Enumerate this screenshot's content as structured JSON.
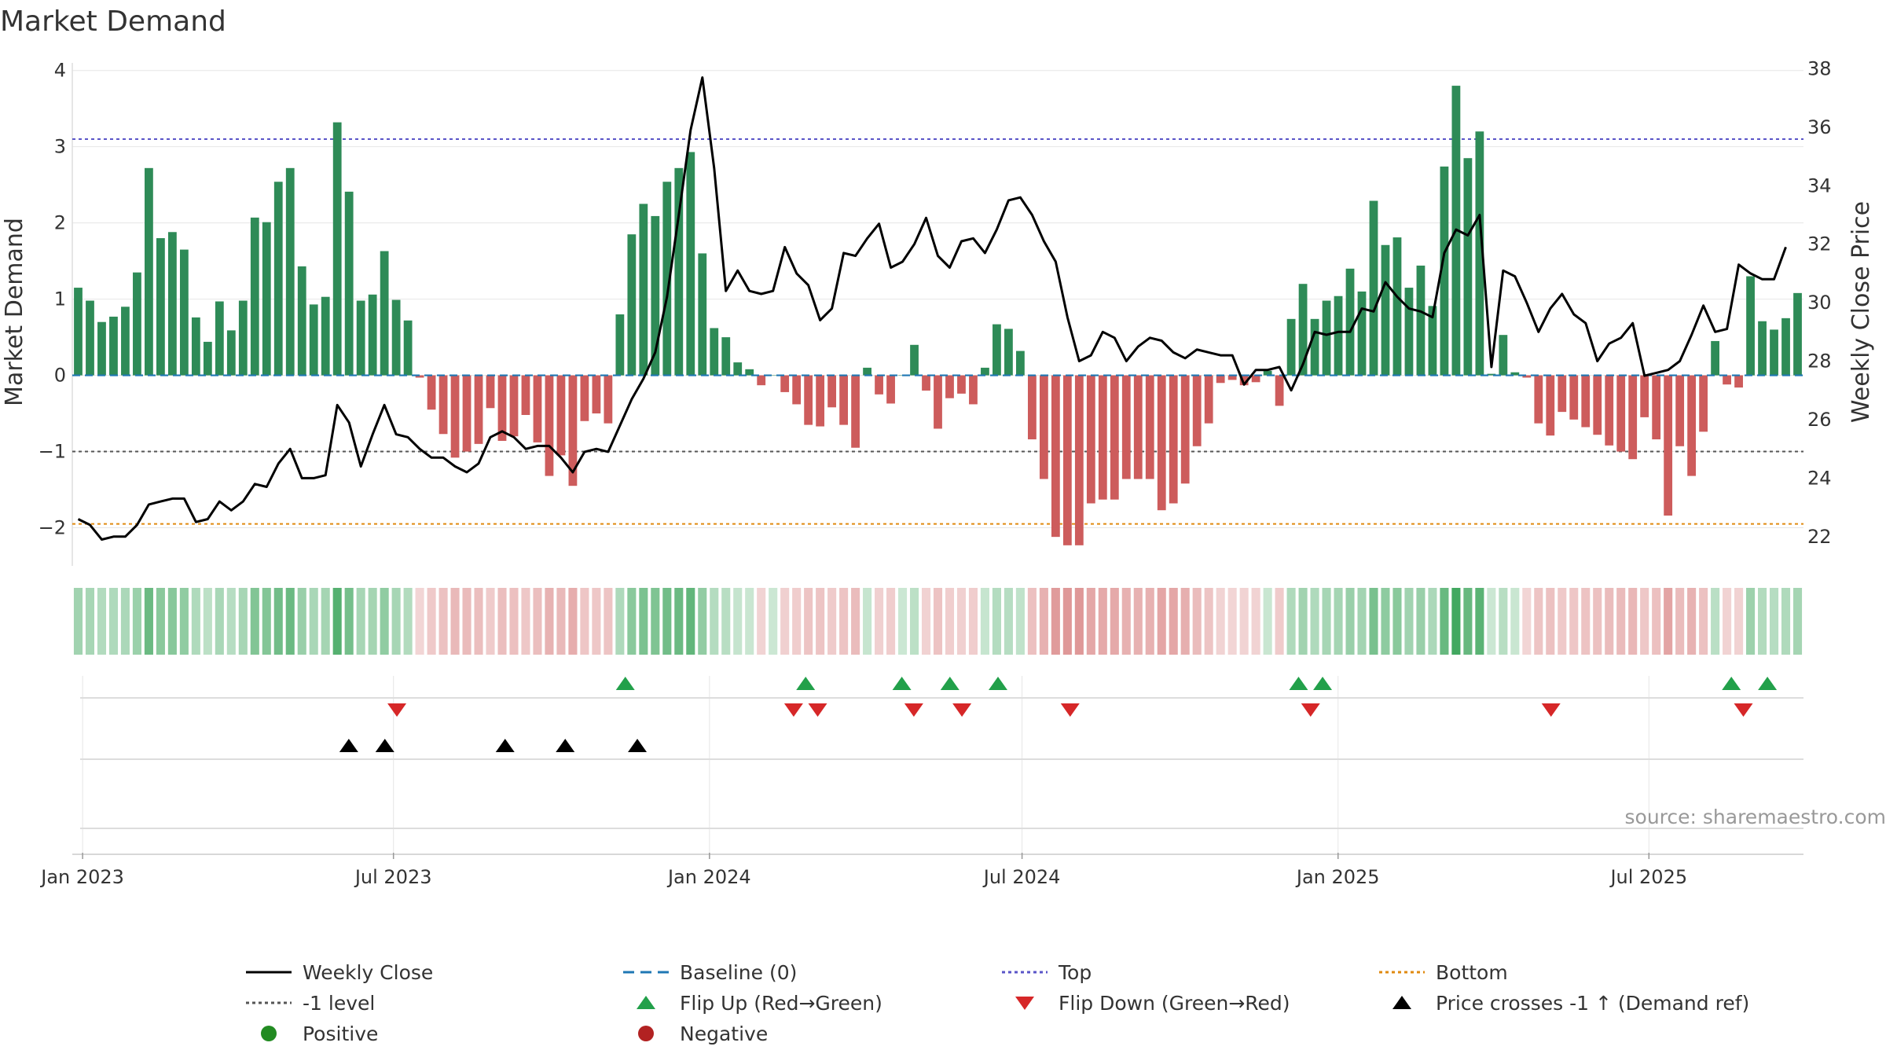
{
  "chart_data": {
    "type": "bar+line",
    "title": "Market Demand",
    "ylabel_left": "Market Demand",
    "ylabel_right": "Weekly Close Price",
    "ylim_left": [
      -2.5,
      4.1
    ],
    "ylim_right": [
      21,
      38.2
    ],
    "yticks_left": [
      4,
      3,
      2,
      1,
      0,
      -1,
      -2
    ],
    "yticks_left_labels": [
      "4",
      "3",
      "2",
      "1",
      "0",
      "−1",
      "−2"
    ],
    "yticks_right": [
      38,
      36,
      34,
      32,
      30,
      28,
      26,
      24,
      22
    ],
    "x_start": "2022-12-26",
    "x_end": "2025-09-29",
    "xticks": [
      {
        "date": "2023-01-01",
        "label": "Jan 2023"
      },
      {
        "date": "2023-07-01",
        "label": "Jul 2023"
      },
      {
        "date": "2024-01-01",
        "label": "Jan 2024"
      },
      {
        "date": "2024-07-01",
        "label": "Jul 2024"
      },
      {
        "date": "2025-01-01",
        "label": "Jan 2025"
      },
      {
        "date": "2025-07-01",
        "label": "Jul 2025"
      }
    ],
    "reference_lines": {
      "top": 3.1,
      "minus_one": -1,
      "bottom": -1.95,
      "baseline": 0
    },
    "demand": [
      1.15,
      0.98,
      0.7,
      0.77,
      0.9,
      1.35,
      2.72,
      1.8,
      1.88,
      1.65,
      0.76,
      0.44,
      0.97,
      0.59,
      0.98,
      2.07,
      2.01,
      2.54,
      2.72,
      1.43,
      0.93,
      1.03,
      3.32,
      2.41,
      0.98,
      1.06,
      1.63,
      0.99,
      0.72,
      -0.03,
      -0.45,
      -0.77,
      -1.08,
      -1.0,
      -0.9,
      -0.43,
      -0.86,
      -0.8,
      -0.52,
      -0.88,
      -1.32,
      -1.05,
      -1.45,
      -0.6,
      -0.5,
      -0.63,
      0.8,
      1.85,
      2.25,
      2.09,
      2.54,
      2.72,
      2.93,
      1.6,
      0.62,
      0.5,
      0.17,
      0.08,
      -0.13,
      0.0,
      -0.22,
      -0.38,
      -0.65,
      -0.67,
      -0.42,
      -0.65,
      -0.95,
      0.1,
      -0.25,
      -0.37,
      0.0,
      0.4,
      -0.2,
      -0.7,
      -0.3,
      -0.24,
      -0.38,
      0.1,
      0.67,
      0.61,
      0.32,
      -0.84,
      -1.36,
      -2.12,
      -2.23,
      -2.23,
      -1.68,
      -1.63,
      -1.63,
      -1.36,
      -1.36,
      -1.36,
      -1.77,
      -1.68,
      -1.42,
      -0.93,
      -0.63,
      -0.1,
      -0.06,
      -0.13,
      -0.09,
      0.06,
      -0.4,
      0.74,
      1.2,
      0.74,
      0.98,
      1.04,
      1.4,
      1.1,
      2.29,
      1.71,
      1.81,
      1.15,
      1.44,
      0.91,
      2.74,
      3.8,
      2.85,
      3.2,
      0.02,
      0.53,
      0.04,
      -0.03,
      -0.63,
      -0.79,
      -0.48,
      -0.58,
      -0.68,
      -0.78,
      -0.92,
      -1.0,
      -1.1,
      -0.55,
      -0.84,
      -1.84,
      -0.93,
      -1.32,
      -0.74,
      0.45,
      -0.12,
      -0.16,
      1.3,
      0.71,
      0.6,
      0.75,
      1.08
    ],
    "close": [
      22.6,
      22.4,
      21.9,
      22.0,
      22.0,
      22.4,
      23.1,
      23.2,
      23.3,
      23.3,
      22.5,
      22.6,
      23.2,
      22.9,
      23.2,
      23.8,
      23.7,
      24.5,
      25.0,
      24.0,
      24.0,
      24.1,
      26.5,
      25.9,
      24.4,
      25.5,
      26.5,
      25.5,
      25.4,
      25.0,
      24.7,
      24.7,
      24.4,
      24.2,
      24.5,
      25.4,
      25.6,
      25.4,
      25.0,
      25.1,
      25.1,
      24.7,
      24.2,
      24.9,
      25.0,
      24.9,
      25.8,
      26.7,
      27.4,
      28.3,
      30.2,
      33.0,
      35.9,
      37.7,
      34.6,
      30.4,
      31.1,
      30.4,
      30.3,
      30.4,
      31.9,
      31.0,
      30.6,
      29.4,
      29.8,
      31.7,
      31.6,
      32.2,
      32.7,
      31.2,
      31.4,
      32.0,
      32.9,
      31.6,
      31.2,
      32.1,
      32.2,
      31.7,
      32.5,
      33.5,
      33.6,
      33.0,
      32.1,
      31.4,
      29.5,
      28.0,
      28.2,
      29.0,
      28.8,
      28.0,
      28.5,
      28.8,
      28.7,
      28.3,
      28.1,
      28.4,
      28.3,
      28.2,
      28.2,
      27.2,
      27.7,
      27.7,
      27.8,
      27.0,
      27.9,
      29.0,
      28.9,
      29.0,
      29.0,
      29.8,
      29.7,
      30.7,
      30.2,
      29.8,
      29.7,
      29.5,
      31.7,
      32.5,
      32.3,
      33.0,
      27.8,
      31.1,
      30.9,
      30.0,
      29.0,
      29.8,
      30.3,
      29.6,
      29.3,
      28.0,
      28.6,
      28.8,
      29.3,
      27.5,
      27.6,
      27.7,
      28.0,
      28.9,
      29.9,
      29.0,
      29.1,
      31.3,
      31.0,
      30.8,
      30.8,
      31.9
    ],
    "flip_up": [
      "2023-11-13",
      "2024-02-26",
      "2024-04-22",
      "2024-05-20",
      "2024-06-17",
      "2024-12-09",
      "2024-12-23",
      "2025-08-18",
      "2025-09-08"
    ],
    "flip_down": [
      "2023-07-03",
      "2024-02-19",
      "2024-03-04",
      "2024-04-29",
      "2024-05-27",
      "2024-07-29",
      "2024-12-16",
      "2025-05-05",
      "2025-08-25"
    ],
    "price_crosses": [
      "2023-06-05",
      "2023-06-26",
      "2023-09-04",
      "2023-10-09",
      "2023-11-20"
    ],
    "legend": [
      {
        "label": "Weekly Close",
        "kind": "solid-line",
        "color": "#000000"
      },
      {
        "label": "Baseline (0)",
        "kind": "dashed-line",
        "color": "#1f77b4"
      },
      {
        "label": "Top",
        "kind": "dotted-line",
        "color": "#5a55c8"
      },
      {
        "label": "Bottom",
        "kind": "dotted-line",
        "color": "#e08a10"
      },
      {
        "label": "-1 level",
        "kind": "dotted-line",
        "color": "#555555"
      },
      {
        "label": "Flip Up (Red→Green)",
        "kind": "triangle-up",
        "color": "#22a04a"
      },
      {
        "label": "Flip Down (Green→Red)",
        "kind": "triangle-down",
        "color": "#d62728"
      },
      {
        "label": "Price crosses -1 ↑ (Demand ref)",
        "kind": "triangle-up",
        "color": "#000000"
      },
      {
        "label": "Positive",
        "kind": "circle",
        "color": "#228b22"
      },
      {
        "label": "Negative",
        "kind": "circle",
        "color": "#b22222"
      }
    ],
    "source": "source: sharemaestro.com"
  },
  "colors": {
    "positive_bar": "#2e8b57",
    "negative_bar": "#cd5c5c",
    "heat_positive": "#2e9e4f",
    "heat_negative": "#cd5c5c",
    "close_line": "#000000",
    "grid": "#e6e6e6",
    "axis": "#dddddd"
  }
}
